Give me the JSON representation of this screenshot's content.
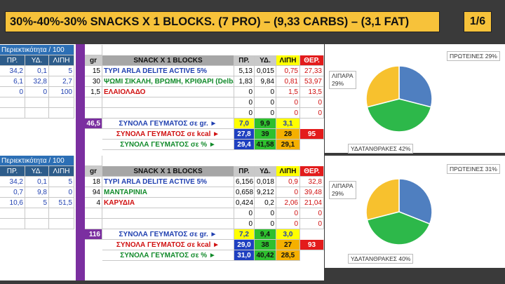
{
  "title": "30%-40%-30% SNACKS X 1 BLOCKS. (7 PRO) – (9,33 CARBS) – (3,1 FAT)",
  "page_indicator": "1/6",
  "tables": [
    {
      "per100_label": "Περιεκτικότητα / 100",
      "per100_headers": [
        "ΠΡ.",
        "ΥΔ.",
        "ΛΙΠΗ"
      ],
      "per100_rows": [
        [
          "34,2",
          "0,1",
          "5"
        ],
        [
          "6,1",
          "32,8",
          "2,7"
        ],
        [
          "0",
          "0",
          "100"
        ],
        [
          "",
          "",
          ""
        ],
        [
          "",
          "",
          ""
        ]
      ],
      "gr_header": "gr",
      "gr_values": [
        "15",
        "30",
        "1,5",
        "",
        ""
      ],
      "block_header": "SNACK X 1 BLOCKS",
      "foods": [
        {
          "name": "ΤΥΡΙ ARLA DELITE ACTIVE 5%",
          "color": "blue"
        },
        {
          "name": "ΨΩΜΙ ΣΙΚΑΛΗ, ΒΡΩΜΗ, ΚΡΙΘΑΡΙ (Delba)",
          "color": "green"
        },
        {
          "name": "ΕΛΑΙΟΛΑΔΟ",
          "color": "red"
        },
        {
          "name": "",
          "color": "blue"
        },
        {
          "name": "",
          "color": "blue"
        }
      ],
      "macro_headers": [
        "ΠΡ.",
        "ΥΔ.",
        "ΛΙΠΗ",
        "ΘΕΡ."
      ],
      "macro_rows": [
        [
          "5,13",
          "0,015",
          "0,75",
          "27,33"
        ],
        [
          "1,83",
          "9,84",
          "0,81",
          "53,97"
        ],
        [
          "0",
          "0",
          "1,5",
          "13,5"
        ],
        [
          "0",
          "0",
          "0",
          "0"
        ],
        [
          "0",
          "0",
          "0",
          "0"
        ]
      ],
      "total_gr": "46,5",
      "sum_labels": [
        "ΣΥΝΟΛΑ ΓΕΥΜΑΤΟΣ σε gr. ►",
        "ΣΥΝΟΛΑ ΓΕΥΜΑΤΟΣ σε kcal ►",
        "ΣΥΝΟΛΑ ΓΕΥΜΑΤΟΣ σε  % ►"
      ],
      "sum_gr": [
        "7,0",
        "9,9",
        "3,1"
      ],
      "sum_kcal": [
        "27,8",
        "39",
        "28",
        "95"
      ],
      "sum_pct": [
        "29,4",
        "41,58",
        "29,1"
      ]
    },
    {
      "per100_label": "Περιεκτικότητα / 100",
      "per100_headers": [
        "ΠΡ.",
        "ΥΔ.",
        "ΛΙΠΗ"
      ],
      "per100_rows": [
        [
          "34,2",
          "0,1",
          "5"
        ],
        [
          "0,7",
          "9,8",
          "0"
        ],
        [
          "10,6",
          "5",
          "51,5"
        ],
        [
          "",
          "",
          ""
        ],
        [
          "",
          "",
          ""
        ]
      ],
      "gr_header": "gr",
      "gr_values": [
        "18",
        "94",
        "4",
        "",
        ""
      ],
      "block_header": "SNACK X 1 BLOCKS",
      "foods": [
        {
          "name": "ΤΥΡΙ ARLA DELITE ACTIVE 5%",
          "color": "blue"
        },
        {
          "name": "ΜΑΝΤΑΡΙΝΙΑ",
          "color": "green"
        },
        {
          "name": "ΚΑΡΥΔΙΑ",
          "color": "red"
        },
        {
          "name": "",
          "color": "blue"
        },
        {
          "name": "",
          "color": "blue"
        }
      ],
      "macro_headers": [
        "ΠΡ.",
        "ΥΔ.",
        "ΛΙΠΗ",
        "ΘΕΡ."
      ],
      "macro_rows": [
        [
          "6,156",
          "0,018",
          "0,9",
          "32,8"
        ],
        [
          "0,658",
          "9,212",
          "0",
          "39,48"
        ],
        [
          "0,424",
          "0,2",
          "2,06",
          "21,04"
        ],
        [
          "0",
          "0",
          "0",
          "0"
        ],
        [
          "0",
          "0",
          "0",
          "0"
        ]
      ],
      "total_gr": "116",
      "sum_labels": [
        "ΣΥΝΟΛΑ ΓΕΥΜΑΤΟΣ σε gr. ►",
        "ΣΥΝΟΛΑ ΓΕΥΜΑΤΟΣ σε kcal ►",
        "ΣΥΝΟΛΑ ΓΕΥΜΑΤΟΣ σε  % ►"
      ],
      "sum_gr": [
        "7,2",
        "9,4",
        "3,0"
      ],
      "sum_kcal": [
        "29,0",
        "38",
        "27",
        "93"
      ],
      "sum_pct": [
        "31,0",
        "40,42",
        "28,5"
      ]
    }
  ],
  "chart_data": [
    {
      "type": "pie",
      "categories": [
        "ΠΡΩΤΕΙΝΕΣ",
        "ΥΔΑΤΑΝΘΡΑΚΕΣ",
        "ΛΙΠΑΡΑ"
      ],
      "values": [
        29,
        42,
        29
      ],
      "labels": [
        "ΠΡΩΤΕΙΝΕΣ 29%",
        "ΥΔΑΤΑΝΘΡΑΚΕΣ 42%",
        "ΛΙΠΑΡΑ\n29%"
      ],
      "colors": [
        "#4f7fc0",
        "#2db84a",
        "#f7c12e"
      ]
    },
    {
      "type": "pie",
      "categories": [
        "ΠΡΩΤΕΙΝΕΣ",
        "ΥΔΑΤΑΝΘΡΑΚΕΣ",
        "ΛΙΠΑΡΑ"
      ],
      "values": [
        31,
        40,
        29
      ],
      "labels": [
        "ΠΡΩΤΕΙΝΕΣ 31%",
        "ΥΔΑΤΑΝΘΡΑΚΕΣ 40%",
        "ΛΙΠΑΡΑ\n29%"
      ],
      "colors": [
        "#4f7fc0",
        "#2db84a",
        "#f7c12e"
      ]
    }
  ]
}
